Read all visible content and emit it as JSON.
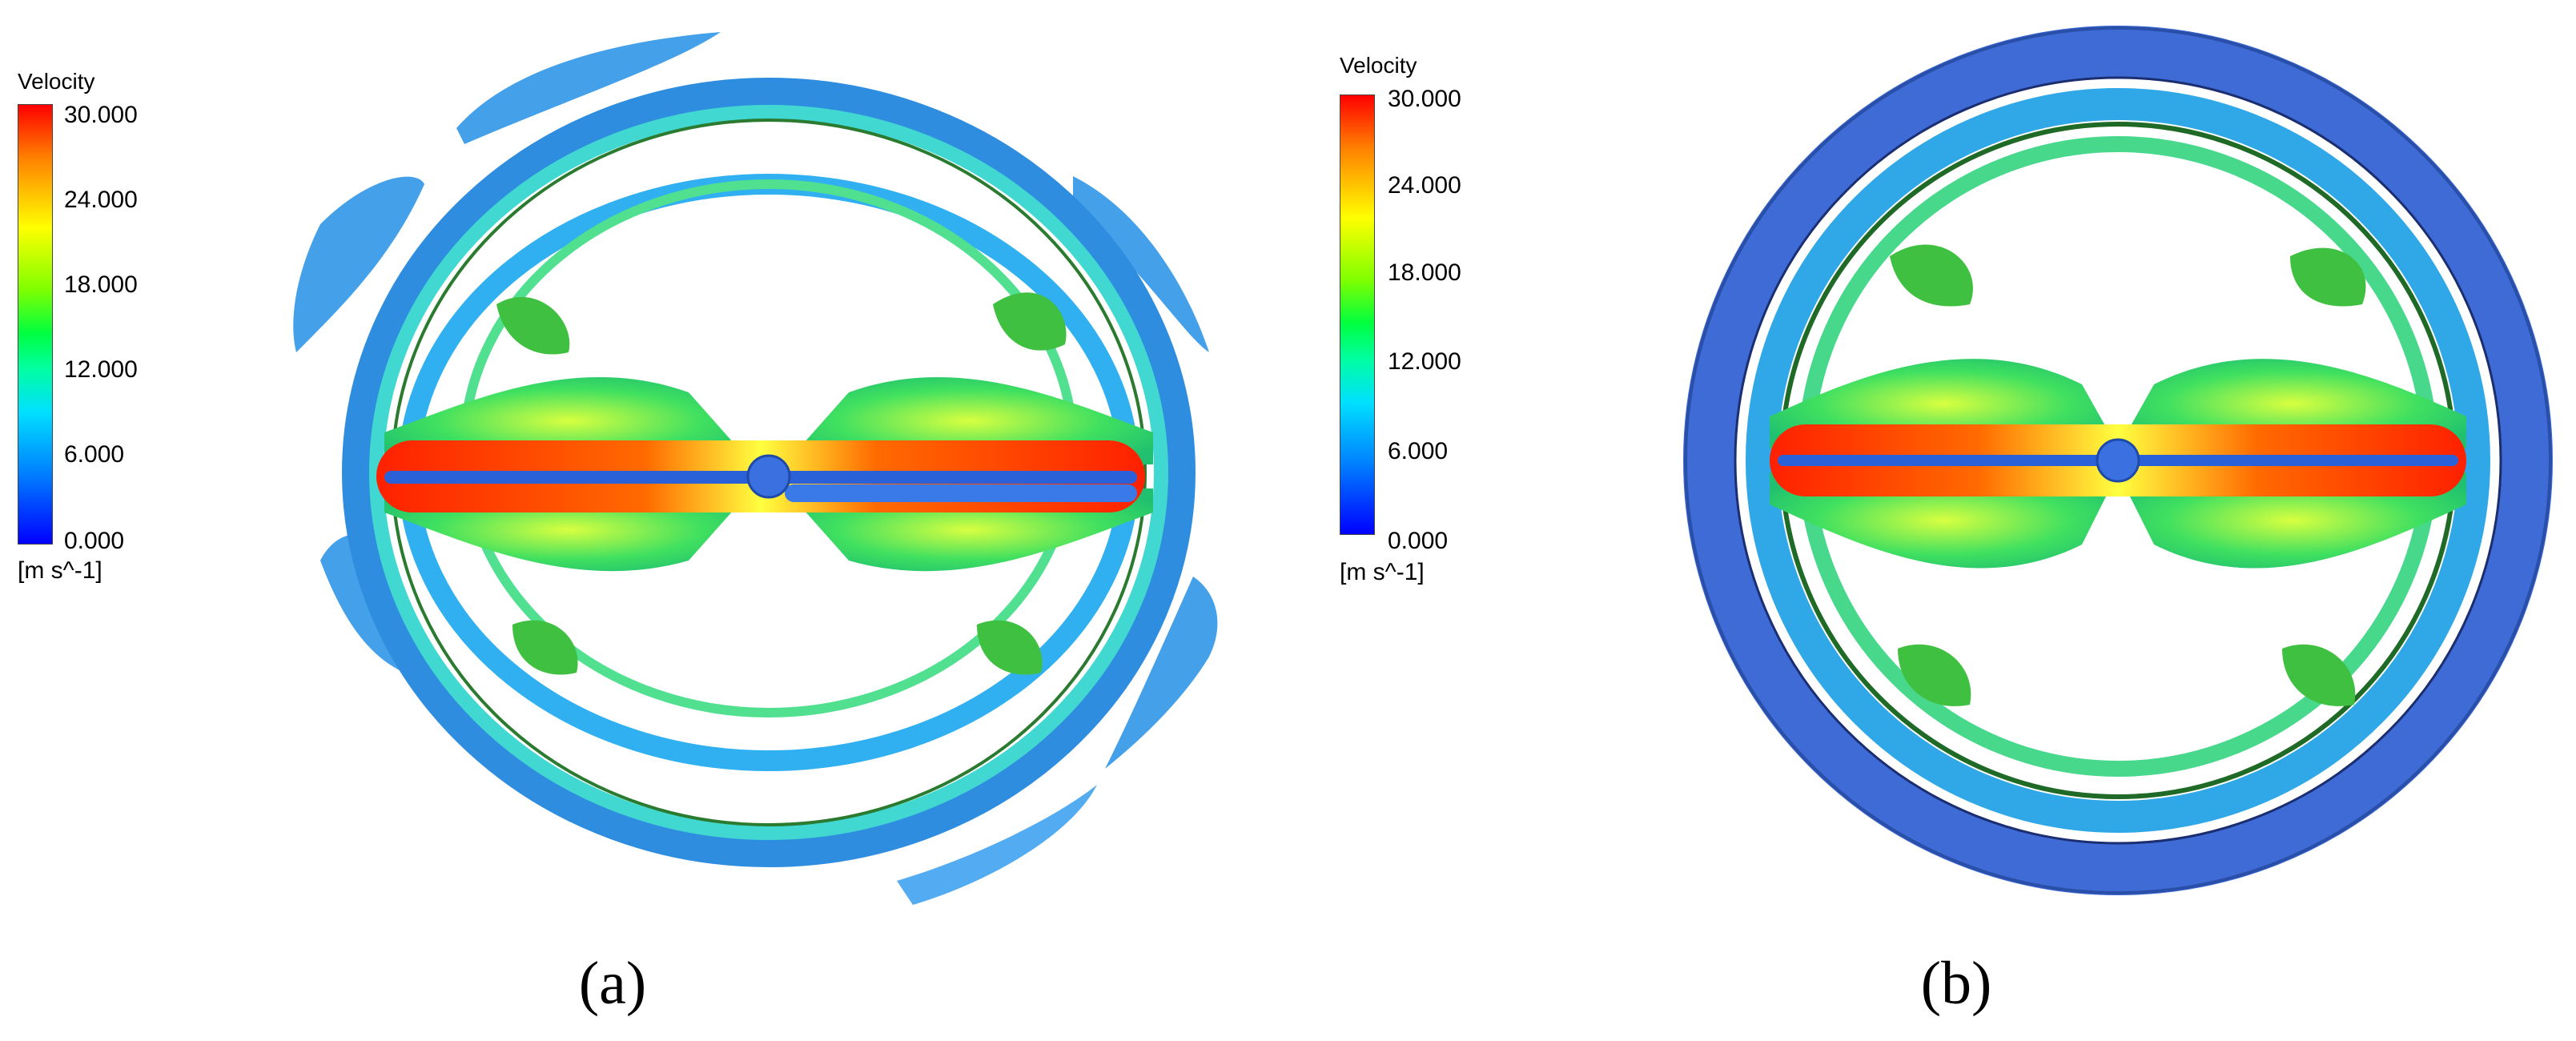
{
  "figure": {
    "panels": [
      {
        "label": "(a)",
        "legend": {
          "title": "Velocity",
          "ticks": [
            "30.000",
            "24.000",
            "18.000",
            "12.000",
            "6.000",
            "0.000"
          ],
          "units": "[m s^-1]"
        }
      },
      {
        "label": "(b)",
        "legend": {
          "title": "Velocity",
          "ticks": [
            "30.000",
            "24.000",
            "18.000",
            "12.000",
            "6.000",
            "0.000"
          ],
          "units": "[m s^-1]"
        }
      }
    ]
  },
  "colors": {
    "colormap": [
      "#0000ff",
      "#0080ff",
      "#00e0ff",
      "#00ffa0",
      "#00ff40",
      "#80ff00",
      "#ffff00",
      "#ff8000",
      "#ff0000"
    ],
    "shroud": "#3f6fd8",
    "hub": "#3a6fe0",
    "background": "#ffffff"
  }
}
